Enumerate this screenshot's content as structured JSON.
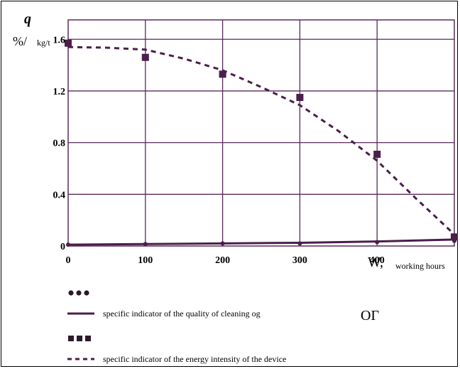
{
  "chart_data": {
    "type": "line",
    "y_label_symbol": "q",
    "y_label_units_prefix": "%/",
    "y_label_units_suffix": "kg/t",
    "x_label_symbol": "W,",
    "x_label_units": "working hours",
    "xlim": [
      0,
      500
    ],
    "ylim": [
      0,
      1.75
    ],
    "x_ticks": [
      0,
      100,
      200,
      300,
      400
    ],
    "y_ticks": [
      0,
      0.4,
      0.8,
      1.2,
      1.6
    ],
    "x_tick_labels": [
      "0",
      "100",
      "200",
      "300",
      "400"
    ],
    "y_tick_labels": [
      "0",
      "0.4",
      "0.8",
      "1.2",
      "1.6"
    ],
    "grid": true,
    "series": [
      {
        "name": "specific indicator of the quality of cleaning og",
        "color": "#4b1e4b",
        "markers": {
          "x": [
            0,
            100,
            200,
            300,
            400,
            500
          ],
          "y": [
            0.01,
            0.015,
            0.02,
            0.02,
            0.03,
            0.04
          ]
        },
        "line": {
          "x": [
            0,
            100,
            200,
            300,
            400,
            500
          ],
          "y": [
            0.01,
            0.015,
            0.02,
            0.025,
            0.035,
            0.05
          ]
        }
      },
      {
        "name": "specific indicator of the energy intensity of the device",
        "color": "#4b1e4b",
        "markers": {
          "x": [
            0,
            100,
            200,
            300,
            400,
            500
          ],
          "y": [
            1.57,
            1.46,
            1.33,
            1.15,
            0.71,
            0.07
          ]
        },
        "line": {
          "x": [
            0,
            50,
            100,
            150,
            200,
            250,
            300,
            350,
            400,
            450,
            500
          ],
          "y": [
            1.54,
            1.535,
            1.52,
            1.45,
            1.36,
            1.23,
            1.09,
            0.89,
            0.66,
            0.37,
            0.09
          ]
        }
      }
    ],
    "annotation": "ОГ"
  }
}
